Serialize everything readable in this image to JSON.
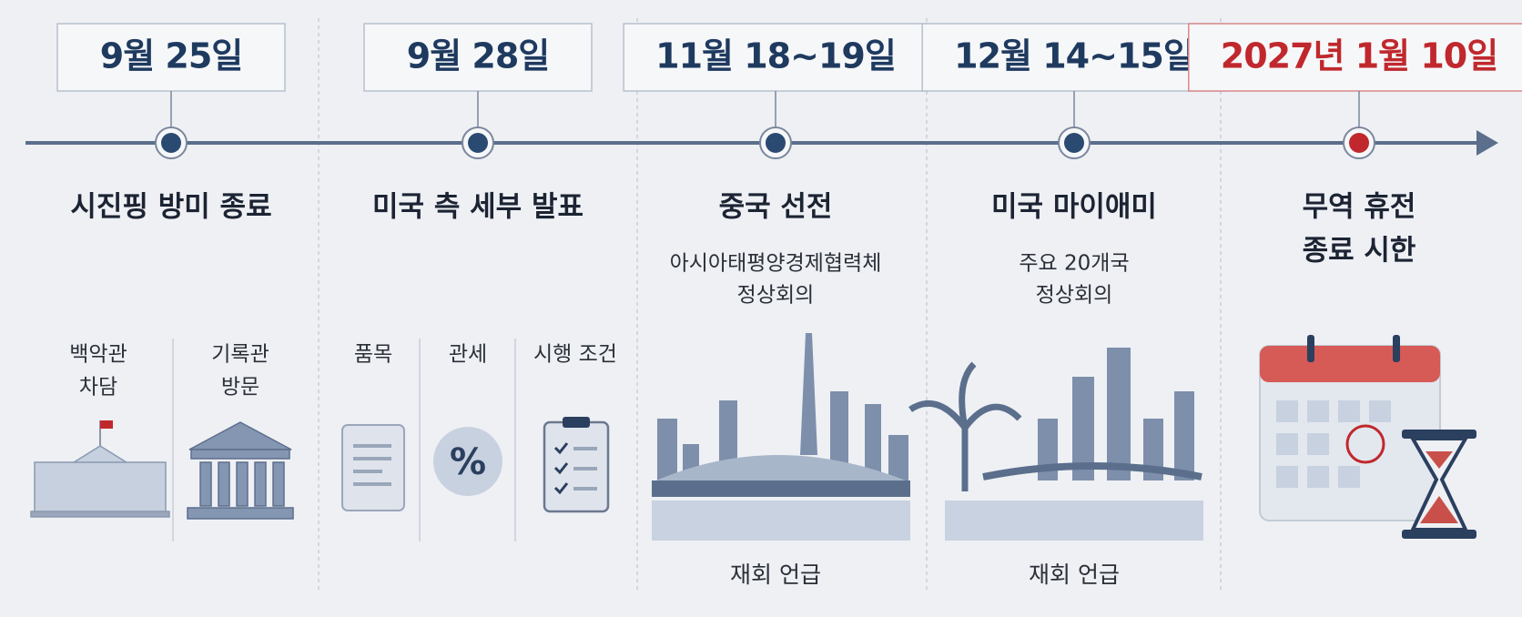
{
  "events": [
    {
      "date": "9월 25일",
      "color": "#1f3a5f",
      "title_lines": [
        "시진핑 방미 종료"
      ],
      "subtitle_lines": [],
      "items": [
        [
          "백악관",
          "차담"
        ],
        [
          "기록관",
          "방문"
        ]
      ],
      "note": null
    },
    {
      "date": "9월 28일",
      "color": "#1f3a5f",
      "title_lines": [
        "미국 측 세부 발표"
      ],
      "subtitle_lines": [],
      "items": [
        [
          "품목"
        ],
        [
          "관세"
        ],
        [
          "시행 조건"
        ]
      ],
      "note": null
    },
    {
      "date": "11월 18~19일",
      "color": "#1f3a5f",
      "title_lines": [
        "중국 선전"
      ],
      "subtitle_lines": [
        "아시아태평양경제협력체",
        "정상회의"
      ],
      "items": [],
      "note": "재회 언급"
    },
    {
      "date": "12월 14~15일",
      "color": "#1f3a5f",
      "title_lines": [
        "미국 마이애미"
      ],
      "subtitle_lines": [
        "주요 20개국",
        "정상회의"
      ],
      "items": [],
      "note": "재회 언급"
    },
    {
      "date": "2027년 1월 10일",
      "color": "#c0282d",
      "title_lines": [
        "무역 휴전",
        "종료 시한"
      ],
      "subtitle_lines": [],
      "items": [],
      "note": null
    }
  ]
}
